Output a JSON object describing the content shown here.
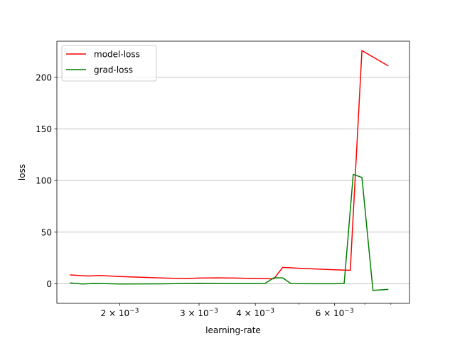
{
  "chart_data": {
    "type": "line",
    "xlabel": "learning-rate",
    "ylabel": "loss",
    "xscale": "log",
    "xlim": [
      0.00145,
      0.0088
    ],
    "ylim": [
      -19,
      235
    ],
    "grid": "y-major",
    "legend_position": "top-left",
    "x_major_ticks": [
      {
        "value": 0.002,
        "label": "2 × 10^-3"
      },
      {
        "value": 0.003,
        "label": "3 × 10^-3"
      },
      {
        "value": 0.004,
        "label": "4 × 10^-3"
      },
      {
        "value": 0.006,
        "label": "6 × 10^-3"
      }
    ],
    "x_minor_ticks": [
      0.005,
      0.007,
      0.008
    ],
    "y_ticks": [
      0,
      50,
      100,
      150,
      200
    ],
    "series": [
      {
        "name": "model-loss",
        "color": "#ff0000",
        "x": [
          0.00155,
          0.0017,
          0.0018,
          0.002,
          0.0025,
          0.0028,
          0.003,
          0.0033,
          0.0036,
          0.004,
          0.0044,
          0.0046,
          0.005,
          0.0055,
          0.006,
          0.0065,
          0.0069,
          0.0079
        ],
        "y": [
          8.5,
          7.5,
          8.0,
          7.0,
          5.5,
          5.0,
          5.5,
          5.7,
          5.5,
          5.0,
          4.8,
          15.8,
          15.0,
          14.2,
          13.5,
          13.0,
          226,
          211
        ]
      },
      {
        "name": "grad-loss",
        "color": "#008000",
        "x": [
          0.00155,
          0.00165,
          0.00175,
          0.00185,
          0.002,
          0.0025,
          0.003,
          0.0035,
          0.004,
          0.0042,
          0.0044,
          0.0046,
          0.0048,
          0.0055,
          0.006,
          0.0063,
          0.0066,
          0.0069,
          0.0073,
          0.0079
        ],
        "y": [
          0.8,
          -0.3,
          0.2,
          0.1,
          -0.2,
          -0.1,
          0.5,
          0.1,
          0.1,
          0.2,
          5.8,
          5.7,
          0.1,
          0.0,
          0.0,
          0.3,
          106,
          103,
          -6.5,
          -5.5
        ]
      }
    ]
  }
}
